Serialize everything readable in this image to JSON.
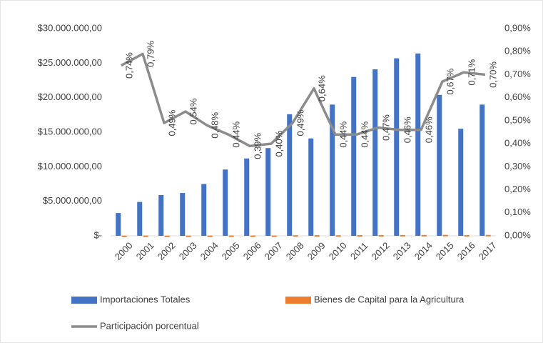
{
  "chart_data": {
    "type": "bar",
    "categories": [
      "2000",
      "2001",
      "2002",
      "2003",
      "2004",
      "2005",
      "2006",
      "2007",
      "2008",
      "2009",
      "2010",
      "2011",
      "2012",
      "2013",
      "2014",
      "2015",
      "2016",
      "2017"
    ],
    "series": [
      {
        "name": "Importaciones Totales",
        "type": "bar",
        "axis": "y",
        "color": "#4472c4",
        "values": [
          3300000,
          4900000,
          5900000,
          6200000,
          7500000,
          9600000,
          11200000,
          12700000,
          17600000,
          14100000,
          19000000,
          23000000,
          24100000,
          25700000,
          26400000,
          20400000,
          15500000,
          19000000
        ]
      },
      {
        "name": "Bienes de Capital para la Agricultura",
        "type": "bar",
        "axis": "y",
        "color": "#ed7d31",
        "values": [
          24400,
          38700,
          28900,
          33500,
          36000,
          42200,
          43700,
          50800,
          86200,
          90200,
          83600,
          101200,
          113300,
          118200,
          121400,
          136700,
          110100,
          133000
        ]
      },
      {
        "name": "Participación porcentual",
        "type": "line",
        "axis": "y2",
        "color": "#8c8c8c",
        "values": [
          0.74,
          0.79,
          0.49,
          0.54,
          0.48,
          0.44,
          0.39,
          0.4,
          0.49,
          0.64,
          0.44,
          0.44,
          0.47,
          0.46,
          0.46,
          0.67,
          0.71,
          0.7
        ],
        "value_labels": [
          "0,74%",
          "0,79%",
          "0,49%",
          "0,54%",
          "0,48%",
          "0,44%",
          "0,39%",
          "0,40%",
          "0,49%",
          "0,64%",
          "0,44%",
          "0,44%",
          "0,47%",
          "0,46%",
          "0,46%",
          "0,67%",
          "0,71%",
          "0,70%"
        ]
      }
    ],
    "ylim": [
      0,
      30000000
    ],
    "yticks": [
      {
        "value": 0,
        "label": "$-"
      },
      {
        "value": 5000000,
        "label": "$5.000.000,00"
      },
      {
        "value": 10000000,
        "label": "$10.000.000,00"
      },
      {
        "value": 15000000,
        "label": "$15.000.000,00"
      },
      {
        "value": 20000000,
        "label": "$20.000.000,00"
      },
      {
        "value": 25000000,
        "label": "$25.000.000,00"
      },
      {
        "value": 30000000,
        "label": "$30.000.000,00"
      }
    ],
    "y2lim": [
      0,
      0.9
    ],
    "y2ticks": [
      {
        "value": 0,
        "label": "0,00%"
      },
      {
        "value": 0.1,
        "label": "0,10%"
      },
      {
        "value": 0.2,
        "label": "0,20%"
      },
      {
        "value": 0.3,
        "label": "0,30%"
      },
      {
        "value": 0.4,
        "label": "0,40%"
      },
      {
        "value": 0.5,
        "label": "0,50%"
      },
      {
        "value": 0.6,
        "label": "0,60%"
      },
      {
        "value": 0.7,
        "label": "0,70%"
      },
      {
        "value": 0.8,
        "label": "0,80%"
      },
      {
        "value": 0.9,
        "label": "0,90%"
      }
    ],
    "grid": false,
    "legend": "bottom"
  }
}
